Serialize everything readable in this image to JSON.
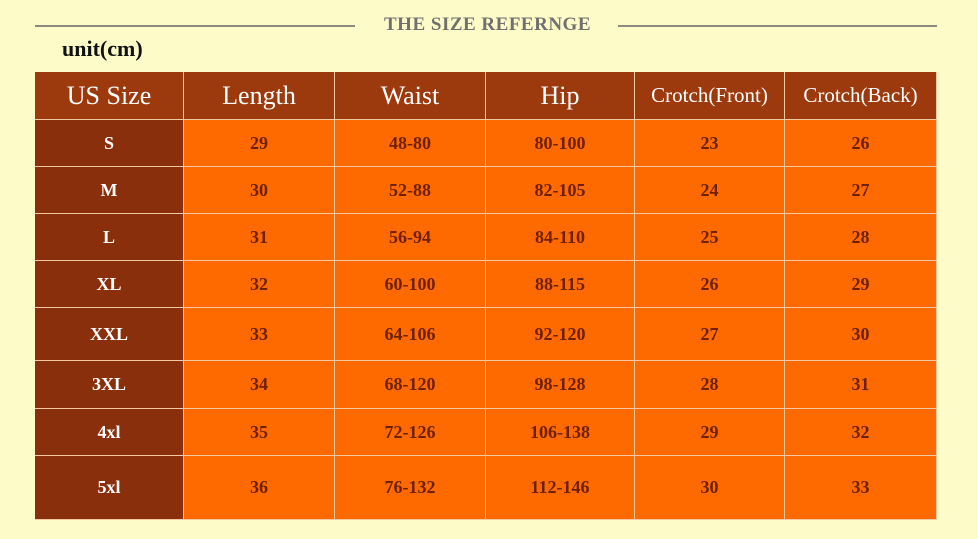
{
  "header": {
    "title": "THE SIZE REFERNGE",
    "unit": "unit(cm)"
  },
  "table": {
    "headers": [
      "US Size",
      "Length",
      "Waist",
      "Hip",
      "Crotch(Front)",
      "Crotch(Back)"
    ],
    "rows": [
      [
        "S",
        "29",
        "48-80",
        "80-100",
        "23",
        "26"
      ],
      [
        "M",
        "30",
        "52-88",
        "82-105",
        "24",
        "27"
      ],
      [
        "L",
        "31",
        "56-94",
        "84-110",
        "25",
        "28"
      ],
      [
        "XL",
        "32",
        "60-100",
        "88-115",
        "26",
        "29"
      ],
      [
        "XXL",
        "33",
        "64-106",
        "92-120",
        "27",
        "30"
      ],
      [
        "3XL",
        "34",
        "68-120",
        "98-128",
        "28",
        "31"
      ],
      [
        "4xl",
        "35",
        "72-126",
        "106-138",
        "29",
        "32"
      ],
      [
        "5xl",
        "36",
        "76-132",
        "112-146",
        "30",
        "33"
      ]
    ]
  }
}
